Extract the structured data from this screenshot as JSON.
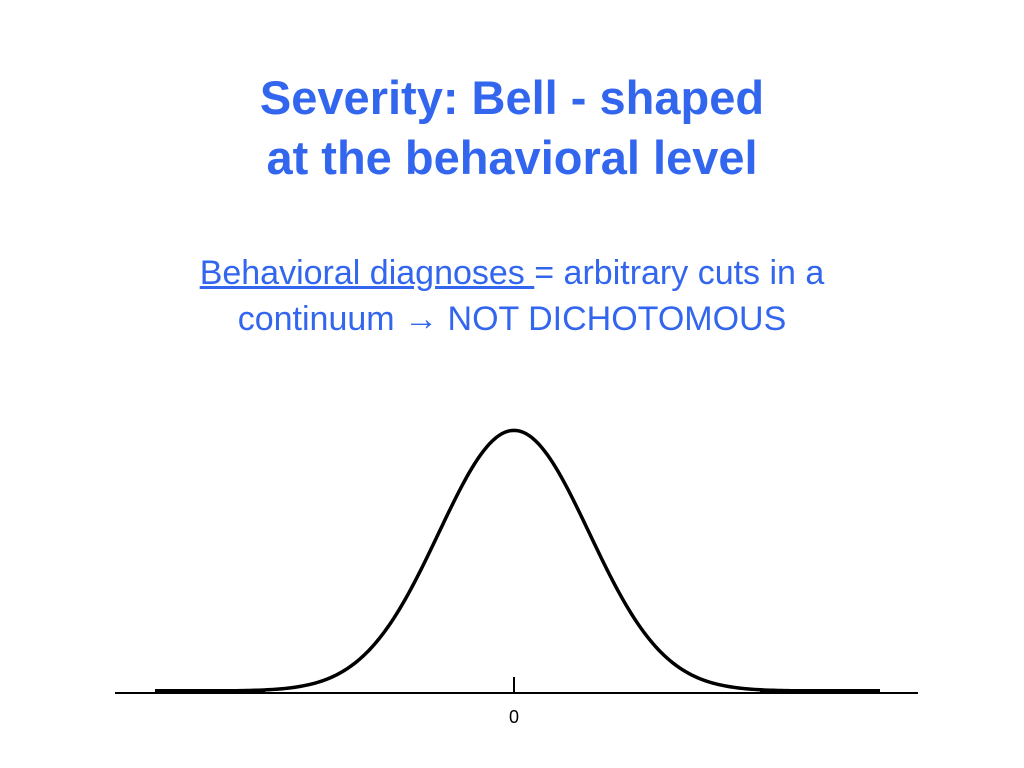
{
  "slide": {
    "title_line1": "Severity: Bell - shaped",
    "title_line2": "at the behavioral level",
    "subtitle": {
      "underlined": "Behavioral diagnoses ",
      "rest_line1": "= arbitrary cuts in a",
      "line2_start": "continuum ",
      "arrow": "→",
      "line2_end": " NOT DICHOTOMOUS"
    }
  },
  "colors": {
    "text_blue": "#3366ee",
    "curve": "#000000"
  },
  "chart_data": {
    "type": "line",
    "title": "",
    "xlabel": "",
    "ylabel": "",
    "x_ticks": [
      "0"
    ],
    "xlim": [
      -4,
      4
    ],
    "ylim": [
      0,
      0.45
    ],
    "series": [
      {
        "distribution": "normal",
        "mean": 0,
        "sd": 1
      }
    ],
    "grid": false
  }
}
